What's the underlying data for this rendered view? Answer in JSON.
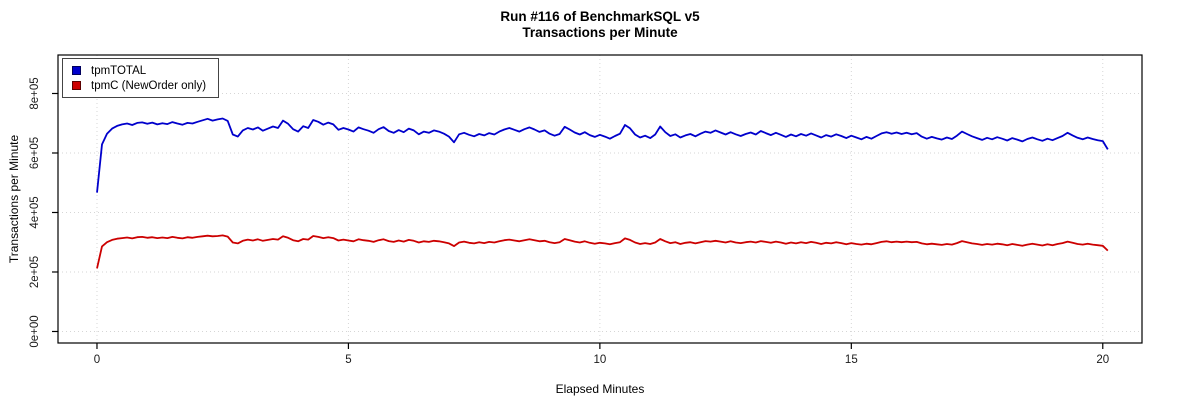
{
  "title": {
    "line1": "Run #116 of BenchmarkSQL v5",
    "line2": "Transactions per Minute"
  },
  "x_axis": {
    "label": "Elapsed Minutes",
    "ticks": [
      0,
      5,
      10,
      15,
      20
    ],
    "tick_labels": [
      "0",
      "5",
      "10",
      "15",
      "20"
    ]
  },
  "y_axis": {
    "label": "Transactions per Minute",
    "ticks": [
      0,
      200000,
      400000,
      600000,
      800000
    ],
    "tick_labels": [
      "0e+00",
      "2e+05",
      "4e+05",
      "6e+05",
      "8e+05"
    ]
  },
  "legend": {
    "items": [
      {
        "label": "tpmTOTAL",
        "color": "#0000cc"
      },
      {
        "label": "tpmC (NewOrder only)",
        "color": "#cc0000"
      }
    ]
  },
  "colors": {
    "grid": "#d6d6d6",
    "axis": "#000000",
    "background": "#ffffff"
  },
  "chart_data": {
    "type": "line",
    "title": "Run #116 of BenchmarkSQL v5 — Transactions per Minute",
    "xlabel": "Elapsed Minutes",
    "ylabel": "Transactions per Minute",
    "grid": true,
    "legend_position": "top-left",
    "x_start": 0,
    "x_step": 0.1,
    "xlim": [
      -0.775,
      20.78
    ],
    "ylim": [
      -38700,
      929400
    ],
    "x_ticks": [
      0,
      5,
      10,
      15,
      20
    ],
    "y_ticks": [
      0,
      200000,
      400000,
      600000,
      800000
    ],
    "series": [
      {
        "name": "tpmTOTAL",
        "color": "#0000cc",
        "values": [
          467000,
          629000,
          665000,
          682000,
          691000,
          696000,
          699000,
          694000,
          701000,
          703000,
          698000,
          702000,
          696000,
          700000,
          697000,
          704000,
          699000,
          695000,
          701000,
          699000,
          705000,
          710000,
          715000,
          709000,
          713000,
          716000,
          708000,
          662000,
          655000,
          676000,
          684000,
          679000,
          686000,
          675000,
          682000,
          689000,
          684000,
          709000,
          698000,
          680000,
          672000,
          690000,
          684000,
          711000,
          705000,
          695000,
          702000,
          696000,
          678000,
          684000,
          679000,
          672000,
          686000,
          680000,
          675000,
          668000,
          680000,
          687000,
          674000,
          668000,
          677000,
          670000,
          682000,
          676000,
          663000,
          672000,
          668000,
          676000,
          672000,
          665000,
          655000,
          636000,
          663000,
          668000,
          661000,
          656000,
          664000,
          659000,
          667000,
          662000,
          672000,
          679000,
          684000,
          678000,
          672000,
          680000,
          686000,
          679000,
          671000,
          676000,
          665000,
          658000,
          664000,
          688000,
          679000,
          669000,
          662000,
          670000,
          660000,
          654000,
          661000,
          655000,
          648000,
          657000,
          665000,
          694000,
          683000,
          662000,
          652000,
          658000,
          650000,
          662000,
          689000,
          670000,
          657000,
          663000,
          652000,
          659000,
          664000,
          656000,
          665000,
          672000,
          668000,
          676000,
          669000,
          662000,
          670000,
          663000,
          657000,
          664000,
          669000,
          662000,
          674000,
          667000,
          660000,
          668000,
          661000,
          654000,
          662000,
          656000,
          664000,
          658000,
          666000,
          659000,
          652000,
          660000,
          655000,
          663000,
          657000,
          650000,
          658000,
          652000,
          646000,
          654000,
          648000,
          657000,
          666000,
          670000,
          665000,
          669000,
          664000,
          668000,
          663000,
          667000,
          655000,
          648000,
          654000,
          649000,
          645000,
          652000,
          647000,
          658000,
          672000,
          664000,
          656000,
          650000,
          644000,
          651000,
          646000,
          653000,
          648000,
          642000,
          650000,
          645000,
          639000,
          647000,
          652000,
          646000,
          641000,
          648000,
          643000,
          650000,
          657000,
          668000,
          659000,
          651000,
          646000,
          652000,
          647000,
          643000,
          640000,
          612000
        ]
      },
      {
        "name": "tpmC (NewOrder only)",
        "color": "#cc0000",
        "values": [
          212000,
          286000,
          300000,
          308000,
          312000,
          314000,
          316000,
          313000,
          317000,
          318000,
          315000,
          317000,
          314000,
          316000,
          314000,
          318000,
          315000,
          313000,
          317000,
          315000,
          318000,
          320000,
          322000,
          320000,
          321000,
          323000,
          319000,
          299000,
          296000,
          305000,
          309000,
          306000,
          310000,
          305000,
          308000,
          311000,
          309000,
          320000,
          315000,
          307000,
          303000,
          311000,
          309000,
          321000,
          318000,
          314000,
          317000,
          314000,
          306000,
          309000,
          306000,
          303000,
          310000,
          307000,
          305000,
          301000,
          307000,
          310000,
          304000,
          301000,
          306000,
          302000,
          308000,
          305000,
          299000,
          303000,
          301000,
          305000,
          303000,
          300000,
          296000,
          287000,
          299000,
          302000,
          298000,
          296000,
          300000,
          297000,
          301000,
          299000,
          303000,
          307000,
          309000,
          306000,
          303000,
          307000,
          310000,
          307000,
          303000,
          305000,
          300000,
          297000,
          300000,
          311000,
          307000,
          302000,
          299000,
          303000,
          298000,
          295000,
          298000,
          296000,
          293000,
          297000,
          300000,
          313000,
          308000,
          299000,
          294000,
          297000,
          294000,
          299000,
          311000,
          303000,
          297000,
          300000,
          294000,
          298000,
          300000,
          296000,
          300000,
          304000,
          302000,
          305000,
          302000,
          299000,
          303000,
          299000,
          297000,
          300000,
          302000,
          299000,
          304000,
          301000,
          298000,
          302000,
          299000,
          295000,
          299000,
          296000,
          300000,
          297000,
          301000,
          298000,
          294000,
          298000,
          296000,
          300000,
          297000,
          293000,
          297000,
          294000,
          292000,
          295000,
          293000,
          297000,
          301000,
          303000,
          300000,
          302000,
          300000,
          302000,
          300000,
          301000,
          296000,
          293000,
          295000,
          293000,
          291000,
          294000,
          292000,
          297000,
          304000,
          300000,
          296000,
          294000,
          291000,
          294000,
          292000,
          295000,
          293000,
          290000,
          294000,
          291000,
          288000,
          292000,
          295000,
          292000,
          289000,
          293000,
          290000,
          294000,
          297000,
          302000,
          298000,
          294000,
          292000,
          295000,
          292000,
          290000,
          288000,
          272000
        ]
      }
    ]
  }
}
